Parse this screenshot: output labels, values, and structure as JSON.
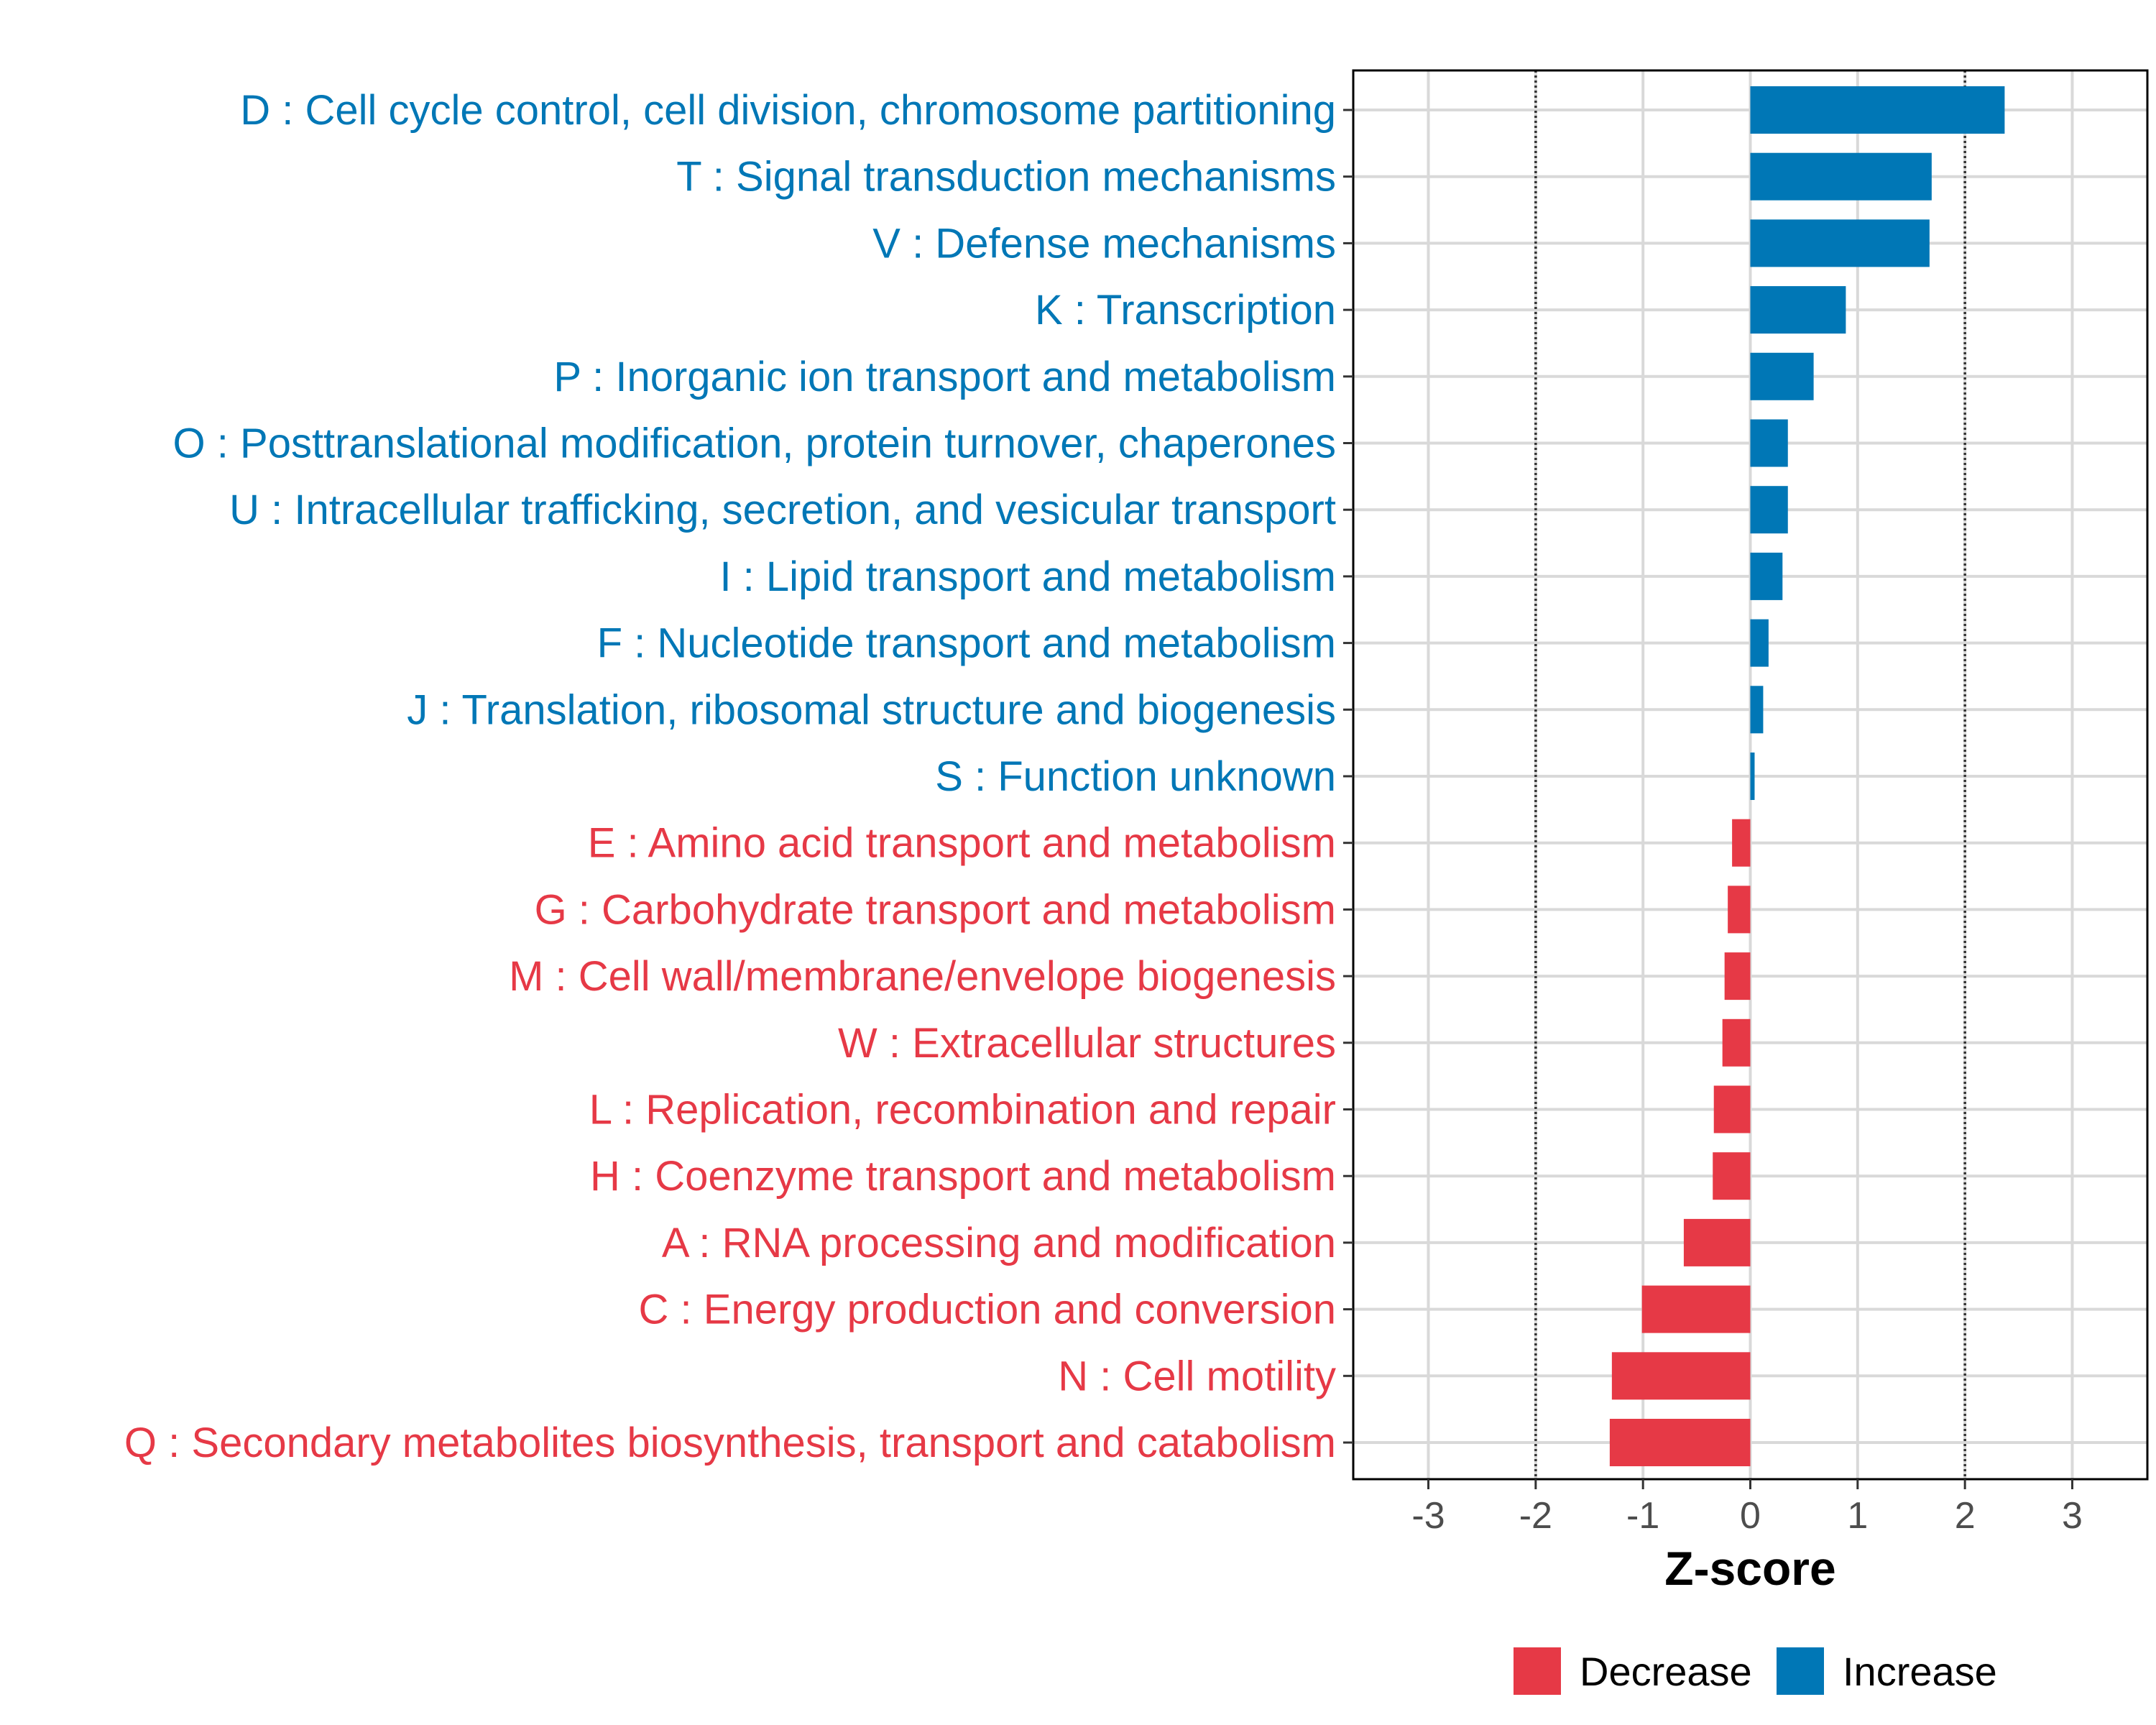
{
  "chart_data": {
    "type": "bar",
    "orientation": "horizontal",
    "title": "",
    "xlabel": "Z-score",
    "ylabel": "",
    "xlim": [
      -3.7,
      3.7
    ],
    "xticks": [
      -3,
      -2,
      -1,
      0,
      1,
      2,
      3
    ],
    "xtick_labels": [
      "-3",
      "-2",
      "-1",
      "0",
      "1",
      "2",
      "3"
    ],
    "reference_lines": [
      -2,
      2
    ],
    "grid": true,
    "colors": {
      "Decrease": "#e63946",
      "Increase": "#0077b6"
    },
    "legend": {
      "position": "bottom-right",
      "entries": [
        {
          "label": "Decrease",
          "color": "#e63946"
        },
        {
          "label": "Increase",
          "color": "#0077b6"
        }
      ]
    },
    "categories": [
      "D : Cell cycle control, cell division, chromosome partitioning",
      "T : Signal transduction mechanisms",
      "V : Defense mechanisms",
      "K : Transcription",
      "P : Inorganic ion transport and metabolism",
      "O : Posttranslational modification, protein turnover, chaperones",
      "U : Intracellular trafficking, secretion, and vesicular transport",
      "I : Lipid transport and metabolism",
      "F : Nucleotide transport and metabolism",
      "J : Translation, ribosomal structure and biogenesis",
      "S : Function unknown",
      "E : Amino acid transport and metabolism",
      "G : Carbohydrate transport and metabolism",
      "M : Cell wall/membrane/envelope biogenesis",
      "W : Extracellular structures",
      "L : Replication, recombination and repair",
      "H : Coenzyme transport and metabolism",
      "A : RNA processing and modification",
      "C : Energy production and conversion",
      "N : Cell motility",
      "Q : Secondary metabolites biosynthesis, transport and catabolism"
    ],
    "values": [
      2.37,
      1.69,
      1.67,
      0.89,
      0.59,
      0.35,
      0.35,
      0.3,
      0.17,
      0.12,
      0.04,
      -0.17,
      -0.21,
      -0.24,
      -0.26,
      -0.34,
      -0.35,
      -0.62,
      -1.01,
      -1.29,
      -1.31
    ],
    "groups": [
      "Increase",
      "Increase",
      "Increase",
      "Increase",
      "Increase",
      "Increase",
      "Increase",
      "Increase",
      "Increase",
      "Increase",
      "Increase",
      "Decrease",
      "Decrease",
      "Decrease",
      "Decrease",
      "Decrease",
      "Decrease",
      "Decrease",
      "Decrease",
      "Decrease",
      "Decrease"
    ]
  }
}
